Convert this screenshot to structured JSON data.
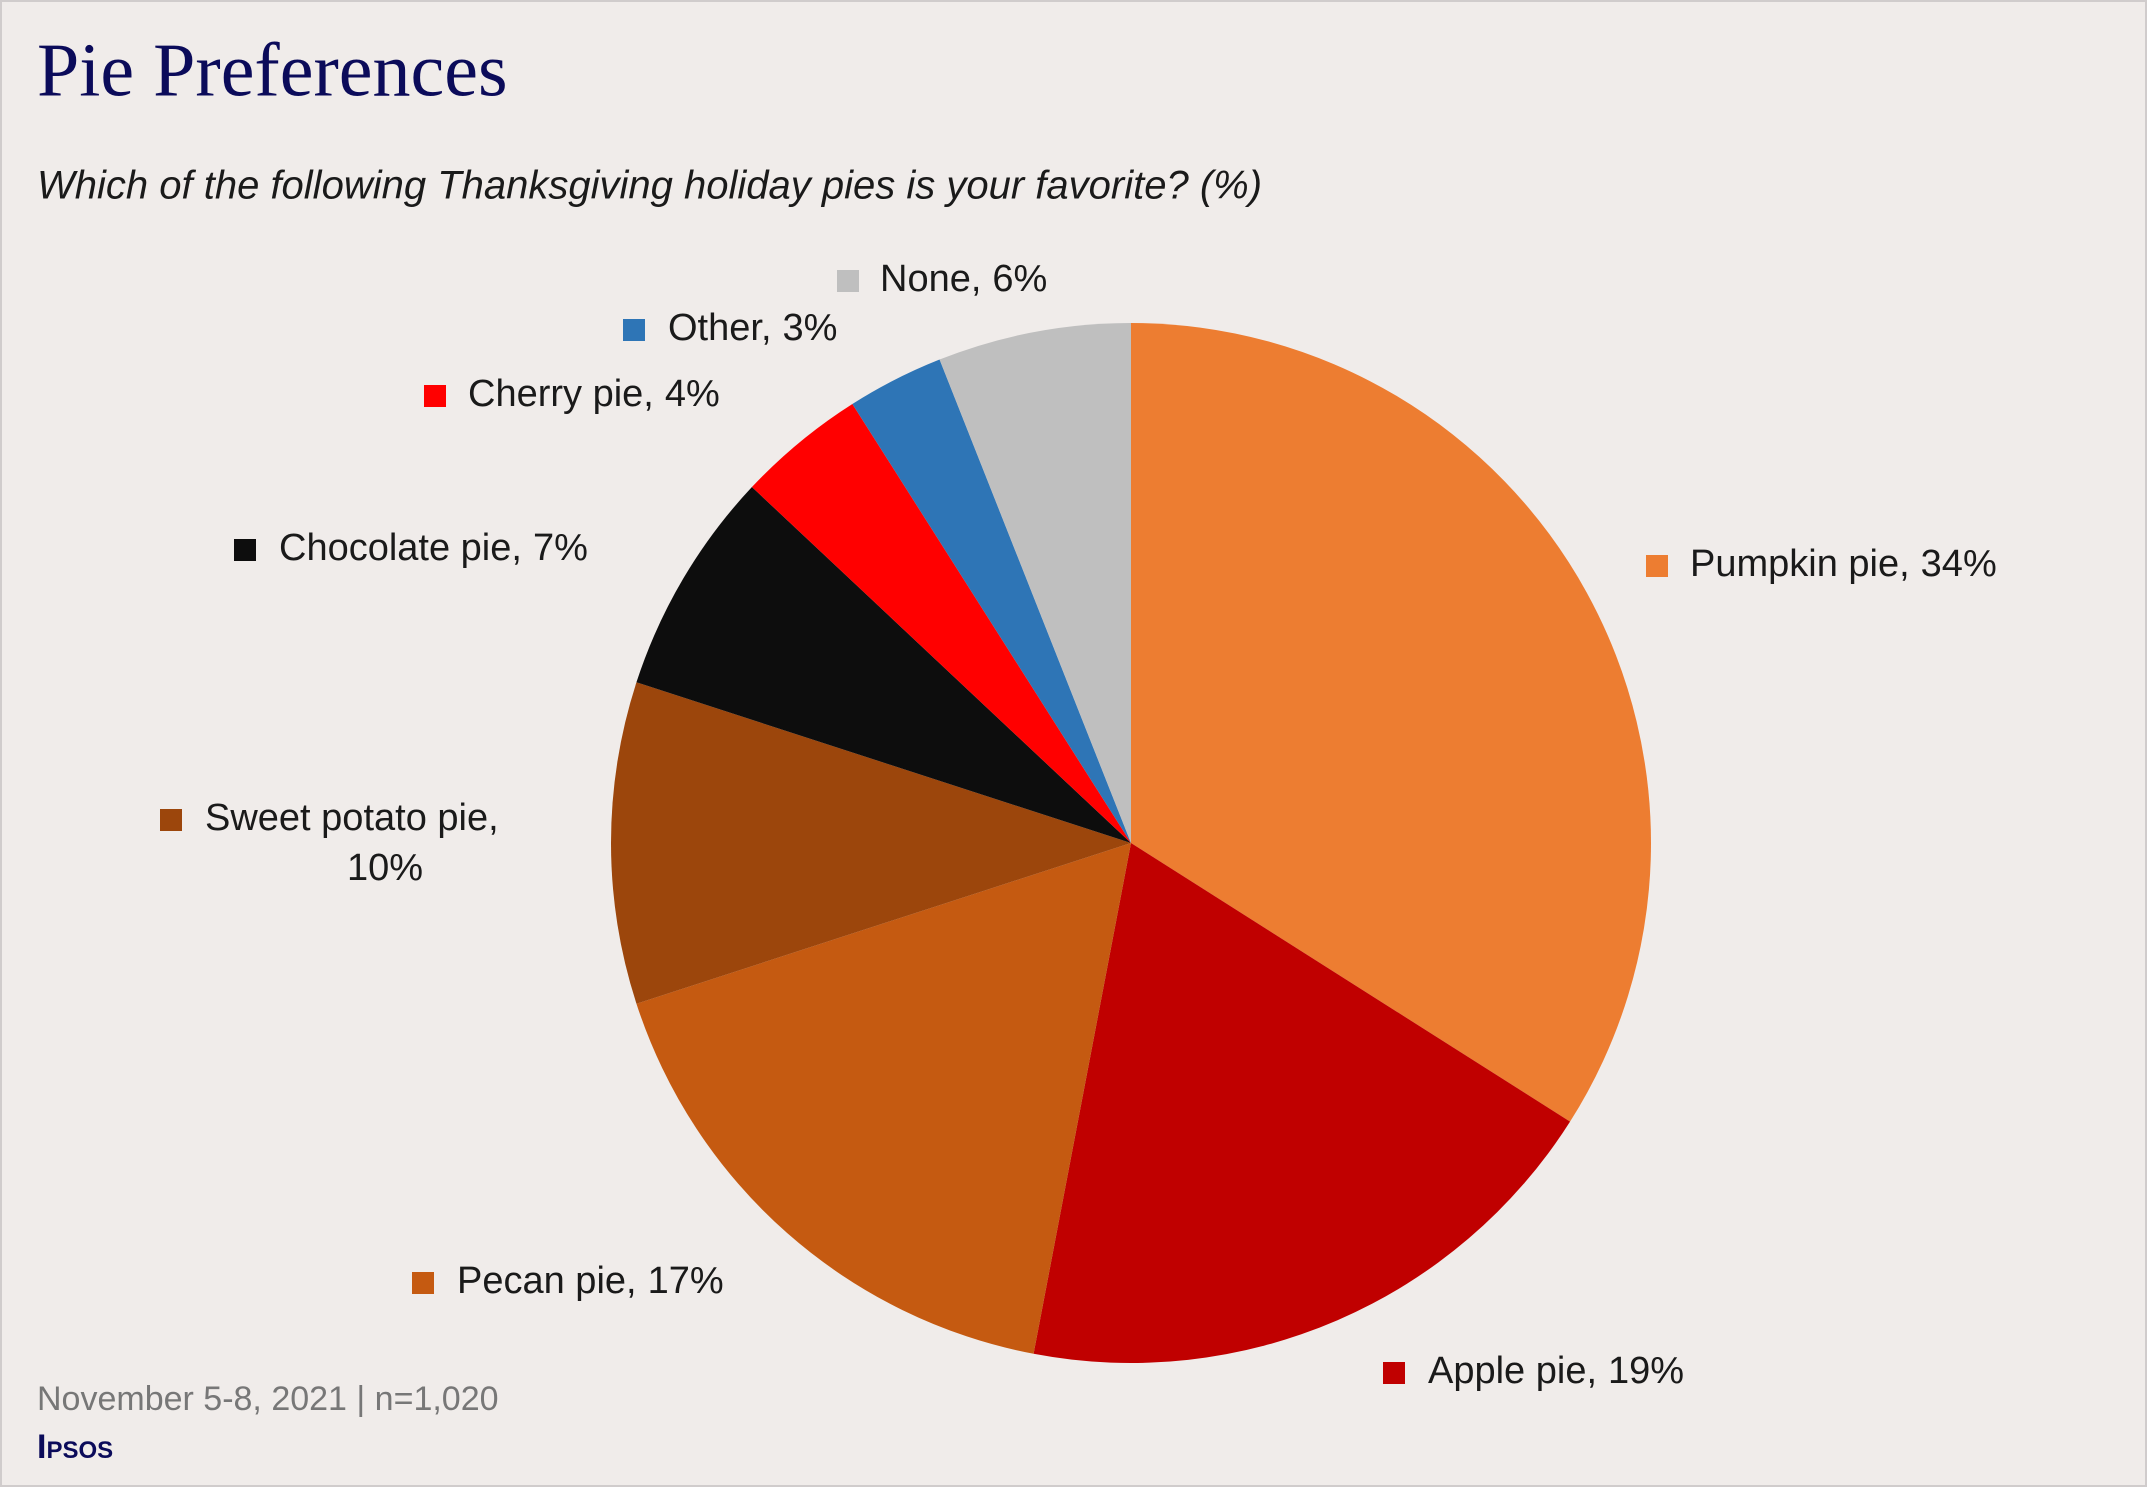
{
  "chart_data": {
    "type": "pie",
    "title": "Pie Preferences",
    "subtitle": "Which of the following Thanksgiving holiday pies is your favorite? (%)",
    "categories": [
      "Pumpkin pie,",
      "Apple pie,",
      "Pecan pie,",
      "Sweet potato pie,",
      "Chocolate pie,",
      "Cherry pie,",
      "Other,",
      "None,"
    ],
    "values": [
      34,
      19,
      17,
      10,
      7,
      4,
      3,
      6
    ],
    "value_labels": [
      "34%",
      "19%",
      "17%",
      "10%",
      "7%",
      "4%",
      "3%",
      "6%"
    ],
    "colors": [
      "#ed7d31",
      "#c00000",
      "#c55a11",
      "#9c460c",
      "#0d0d0d",
      "#ff0000",
      "#2e75b6",
      "#bfbfbf"
    ],
    "footnote": "November 5-8, 2021 | n=1,020",
    "source": "Ipsos"
  }
}
